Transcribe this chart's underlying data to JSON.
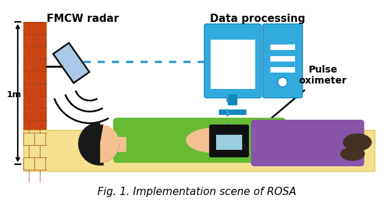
{
  "title": "Fig. 1. Implementation scene of ROSA",
  "title_fontsize": 11,
  "label_fmcw": "FMCW radar",
  "label_data": "Data processing",
  "label_pulse": "Pulse\noximeter",
  "label_1m": "1m",
  "bg_color": "#ffffff",
  "wall_color": "#cc4411",
  "wall_mortar": "#994422",
  "bed_color": "#f5e090",
  "bed_edge": "#e0c860",
  "radar_body": "#aac8e8",
  "radar_border": "#111111",
  "monitor_blue": "#33aadd",
  "monitor_dark": "#1188bb",
  "monitor_white": "#ffffff",
  "person_skin": "#f5c090",
  "person_hair": "#1a1a1a",
  "person_shirt": "#66bb33",
  "person_pants": "#8855aa",
  "person_shoes": "#443322",
  "oximeter_body": "#111111",
  "oximeter_screen": "#99ccdd",
  "dotted_color": "#3399cc",
  "bracket_color": "#000000"
}
